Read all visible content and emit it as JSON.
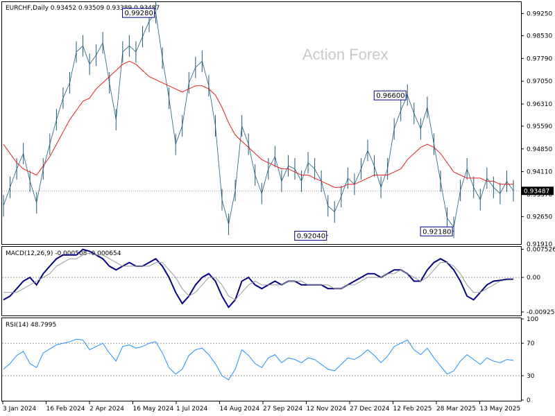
{
  "chart_data": [
    {
      "type": "line",
      "panel": "price",
      "header": "EURCHF,Daily  0.93452 0.93509 0.93389 0.93487",
      "watermark": "Action Forex",
      "last_price": "0.93487",
      "ylim": [
        0.9178,
        0.996
      ],
      "y_ticks": [
        0.9265,
        0.9337,
        0.9411,
        0.9485,
        0.9559,
        0.9631,
        0.9705,
        0.9779,
        0.9853,
        0.9925
      ],
      "y_tick_labels": [
        "0.92650",
        "0.93370",
        "0.94110",
        "0.94850",
        "0.95590",
        "0.96310",
        "0.97050",
        "0.97790",
        "0.98530",
        "0.99250"
      ],
      "extra_tick_label": "0.91910",
      "annotations": [
        {
          "label": "0.99280",
          "value": 0.9928
        },
        {
          "label": "0.96600",
          "value": 0.966
        },
        {
          "label": "0.92040",
          "value": 0.9204
        },
        {
          "label": "0.92180",
          "value": 0.9218
        }
      ],
      "series": [
        {
          "name": "",
          "values": [
            0.93,
            0.936,
            0.942,
            0.947,
            0.938,
            0.931,
            0.942,
            0.95,
            0.958,
            0.965,
            0.97,
            0.98,
            0.982,
            0.976,
            0.979,
            0.983,
            0.97,
            0.958,
            0.98,
            0.982,
            0.98,
            0.985,
            0.99,
            0.9928,
            0.978,
            0.965,
            0.95,
            0.956,
            0.97,
            0.975,
            0.977,
            0.969,
            0.956,
            0.932,
            0.924,
            0.935,
            0.956,
            0.95,
            0.94,
            0.934,
            0.942,
            0.946,
            0.938,
            0.943,
            0.942,
            0.938,
            0.944,
            0.942,
            0.938,
            0.93,
            0.928,
            0.933,
            0.939,
            0.937,
            0.942,
            0.948,
            0.943,
            0.936,
            0.942,
            0.955,
            0.961,
            0.966,
            0.96,
            0.955,
            0.962,
            0.95,
            0.938,
            0.926,
            0.923,
            0.935,
            0.942,
            0.936,
            0.932,
            0.939,
            0.936,
            0.934,
            0.938,
            0.9349
          ]
        },
        {
          "name": "",
          "values": [
            0.95,
            0.947,
            0.944,
            0.942,
            0.941,
            0.94,
            0.943,
            0.946,
            0.95,
            0.954,
            0.958,
            0.961,
            0.964,
            0.965,
            0.968,
            0.97,
            0.972,
            0.974,
            0.976,
            0.977,
            0.976,
            0.974,
            0.972,
            0.971,
            0.97,
            0.969,
            0.968,
            0.967,
            0.968,
            0.969,
            0.969,
            0.968,
            0.966,
            0.962,
            0.957,
            0.953,
            0.951,
            0.949,
            0.947,
            0.945,
            0.944,
            0.943,
            0.942,
            0.942,
            0.941,
            0.94,
            0.94,
            0.939,
            0.938,
            0.937,
            0.936,
            0.936,
            0.937,
            0.937,
            0.938,
            0.939,
            0.94,
            0.94,
            0.94,
            0.941,
            0.942,
            0.945,
            0.947,
            0.949,
            0.95,
            0.949,
            0.947,
            0.944,
            0.941,
            0.94,
            0.939,
            0.939,
            0.939,
            0.938,
            0.938,
            0.937,
            0.937,
            0.937
          ]
        }
      ]
    },
    {
      "type": "line",
      "panel": "macd",
      "header": "MACD(12,26,9) -0.000508 -0.000654",
      "ylim": [
        -0.01,
        0.008
      ],
      "y_ticks": [
        0.007526,
        0.0,
        -0.009252
      ],
      "y_tick_labels": [
        "0.007526",
        "0.00",
        "-0.009252"
      ],
      "series": [
        {
          "name": "",
          "values": [
            -0.006,
            -0.005,
            -0.003,
            -0.001,
            0.0,
            -0.002,
            0.001,
            0.003,
            0.005,
            0.006,
            0.006,
            0.006,
            0.0075,
            0.007,
            0.006,
            0.005,
            0.003,
            0.002,
            0.003,
            0.004,
            0.003,
            0.003,
            0.004,
            0.005,
            0.003,
            0.0,
            -0.004,
            -0.007,
            -0.005,
            -0.002,
            0.0,
            0.001,
            -0.001,
            -0.005,
            -0.008,
            -0.006,
            -0.001,
            0.0,
            -0.002,
            -0.003,
            -0.002,
            -0.001,
            -0.002,
            -0.001,
            -0.001,
            -0.002,
            -0.002,
            -0.002,
            -0.002,
            -0.003,
            -0.003,
            -0.003,
            -0.002,
            -0.001,
            0.0,
            0.001,
            0.001,
            0.0,
            0.001,
            0.002,
            0.002,
            0.001,
            -0.001,
            -0.001,
            0.002,
            0.004,
            0.005,
            0.004,
            0.002,
            -0.001,
            -0.005,
            -0.006,
            -0.004,
            -0.002,
            -0.001,
            -0.0008,
            -0.0005,
            -0.0005
          ]
        },
        {
          "name": "",
          "values": [
            -0.004,
            -0.004,
            -0.004,
            -0.003,
            -0.002,
            -0.001,
            0.0,
            0.001,
            0.003,
            0.004,
            0.005,
            0.005,
            0.006,
            0.0065,
            0.006,
            0.006,
            0.005,
            0.004,
            0.003,
            0.003,
            0.003,
            0.003,
            0.003,
            0.004,
            0.004,
            0.002,
            0.0,
            -0.003,
            -0.005,
            -0.004,
            -0.002,
            0.0,
            0.0,
            -0.002,
            -0.005,
            -0.006,
            -0.004,
            -0.002,
            -0.001,
            -0.002,
            -0.002,
            -0.002,
            -0.002,
            -0.001,
            -0.001,
            -0.001,
            -0.002,
            -0.002,
            -0.002,
            -0.002,
            -0.003,
            -0.003,
            -0.002,
            -0.002,
            -0.001,
            0.0,
            0.0,
            0.0,
            0.001,
            0.001,
            0.002,
            0.001,
            0.0,
            -0.001,
            0.0,
            0.002,
            0.004,
            0.004,
            0.003,
            0.001,
            -0.002,
            -0.004,
            -0.004,
            -0.003,
            -0.002,
            -0.001,
            -0.0007,
            -0.00065
          ]
        }
      ]
    },
    {
      "type": "line",
      "panel": "rsi",
      "header": "RSI(14) 48.7995",
      "ylim": [
        0,
        100
      ],
      "y_ticks": [
        100,
        70,
        30,
        0
      ],
      "y_tick_labels": [
        "100",
        "70",
        "30",
        "0"
      ],
      "x_tick_labels": [
        "3 Jan 2024",
        "16 Feb 2024",
        "2 Apr 2024",
        "16 May 2024",
        "1 Jul 2024",
        "14 Aug 2024",
        "27 Sep 2024",
        "12 Nov 2024",
        "27 Dec 2024",
        "12 Feb 2025",
        "28 Mar 2025",
        "13 May 2025"
      ],
      "series": [
        {
          "name": "",
          "values": [
            38,
            45,
            55,
            60,
            45,
            40,
            58,
            63,
            68,
            70,
            72,
            75,
            74,
            62,
            66,
            70,
            58,
            48,
            66,
            68,
            64,
            66,
            70,
            72,
            58,
            40,
            32,
            38,
            55,
            62,
            64,
            56,
            45,
            30,
            25,
            38,
            62,
            55,
            45,
            40,
            52,
            56,
            46,
            52,
            50,
            46,
            52,
            50,
            44,
            38,
            36,
            44,
            52,
            50,
            55,
            62,
            55,
            46,
            54,
            66,
            70,
            74,
            62,
            56,
            64,
            52,
            42,
            32,
            36,
            48,
            56,
            50,
            44,
            52,
            48,
            46,
            50,
            48.8
          ]
        }
      ]
    }
  ]
}
